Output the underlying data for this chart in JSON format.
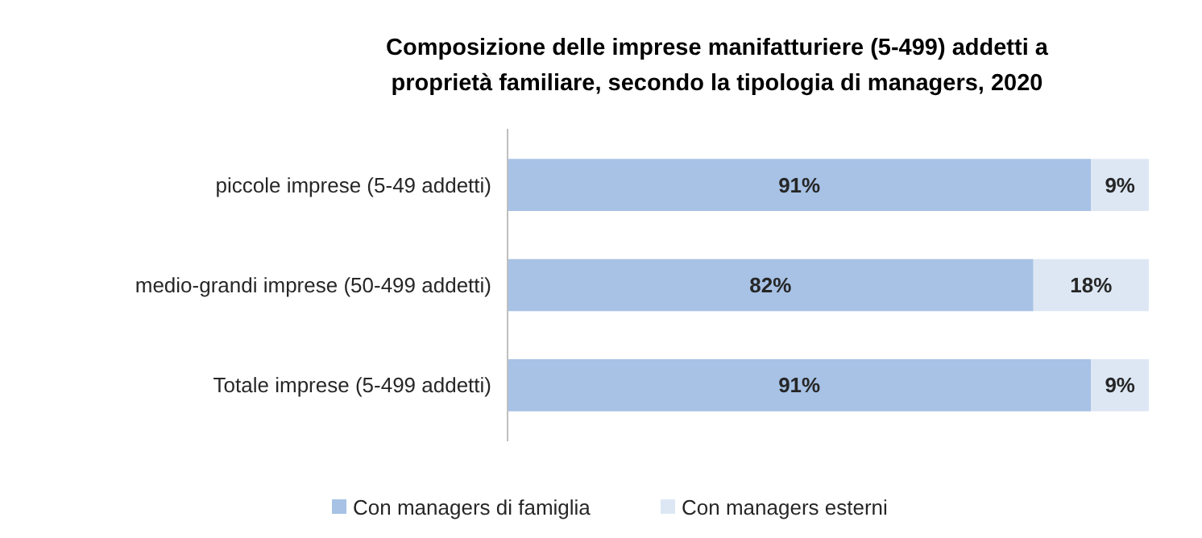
{
  "chart_data": {
    "type": "bar",
    "orientation": "horizontal",
    "stacked": true,
    "title": "Composizione delle imprese manifatturiere (5-499) addetti a proprietà familiare, secondo la tipologia di managers, 2020",
    "categories": [
      "piccole imprese (5-49 addetti)",
      "medio-grandi imprese (50-499 addetti)",
      "Totale imprese (5-499 addetti)"
    ],
    "xlim": [
      0,
      100
    ],
    "tick_labels": "y",
    "legend": "bottom",
    "series": [
      {
        "name": "Con managers di famiglia",
        "color": "#a7c2e5",
        "values": [
          91,
          82,
          91
        ],
        "value_labels": [
          "91%",
          "82%",
          "91%"
        ]
      },
      {
        "name": "Con managers esterni",
        "color": "#dde7f4",
        "values": [
          9,
          18,
          9
        ],
        "value_labels": [
          "9%",
          "18%",
          "9%"
        ]
      }
    ]
  }
}
